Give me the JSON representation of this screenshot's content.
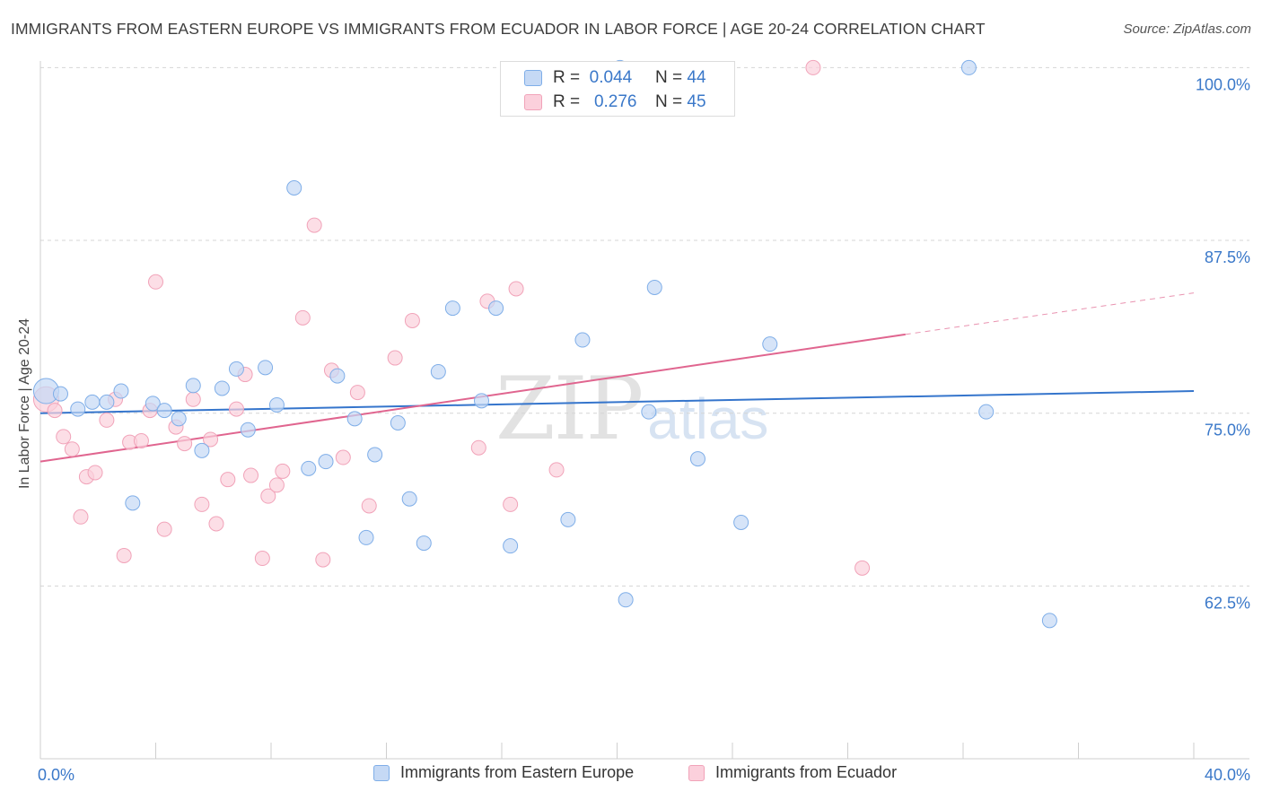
{
  "title": "IMMIGRANTS FROM EASTERN EUROPE VS IMMIGRANTS FROM ECUADOR IN LABOR FORCE | AGE 20-24 CORRELATION CHART",
  "source": "Source: ZipAtlas.com",
  "watermark": {
    "zip": "ZIP",
    "atlas": "atlas"
  },
  "stats": [
    {
      "r_label": "R =",
      "r_value": "0.044",
      "n_label": "N =",
      "n_value": "44",
      "swatch_fill": "#c5d9f5",
      "swatch_stroke": "#7faee8"
    },
    {
      "r_label": "R =",
      "r_value": "0.276",
      "n_label": "N =",
      "n_value": "45",
      "swatch_fill": "#fbd0dc",
      "swatch_stroke": "#f1a3b9"
    }
  ],
  "legend": {
    "items": [
      {
        "label": "Immigrants from Eastern Europe",
        "fill": "#c5d9f5",
        "stroke": "#7faee8"
      },
      {
        "label": "Immigrants from Ecuador",
        "fill": "#fbd0dc",
        "stroke": "#f1a3b9"
      }
    ]
  },
  "chart_data": {
    "type": "scatter",
    "title": "IMMIGRANTS FROM EASTERN EUROPE VS IMMIGRANTS FROM ECUADOR IN LABOR FORCE | AGE 20-24 CORRELATION CHART",
    "xlabel": "",
    "ylabel": "In Labor Force | Age 20-24",
    "xlim": [
      0,
      40
    ],
    "ylim": [
      50,
      101
    ],
    "x_tick_labels": [
      "0.0%",
      "40.0%"
    ],
    "y_ticks": [
      62.5,
      75.0,
      87.5,
      100.0
    ],
    "y_tick_labels": [
      "62.5%",
      "75.0%",
      "87.5%",
      "100.0%"
    ],
    "grid": true,
    "legend_position": "bottom",
    "colors": {
      "blue_fill": "#c5d9f5",
      "blue_stroke": "#7faee8",
      "blue_line": "#3575cc",
      "pink_fill": "#fbd0dc",
      "pink_stroke": "#f1a3b9",
      "pink_line": "#e0658f",
      "tick_label": "#3a78c9"
    },
    "series": [
      {
        "name": "Immigrants from Eastern Europe",
        "trend": {
          "x0": 0.0,
          "y0": 75.0,
          "x1": 40.0,
          "y1": 76.6
        },
        "points": [
          [
            0.2,
            76.6
          ],
          [
            0.7,
            76.4
          ],
          [
            1.3,
            75.3
          ],
          [
            1.8,
            75.8
          ],
          [
            2.3,
            75.8
          ],
          [
            2.8,
            76.6
          ],
          [
            3.2,
            68.5
          ],
          [
            3.9,
            75.7
          ],
          [
            4.3,
            75.2
          ],
          [
            4.8,
            74.6
          ],
          [
            5.3,
            77.0
          ],
          [
            5.6,
            72.3
          ],
          [
            6.3,
            76.8
          ],
          [
            6.8,
            78.2
          ],
          [
            7.2,
            73.8
          ],
          [
            7.8,
            78.3
          ],
          [
            8.2,
            75.6
          ],
          [
            8.8,
            91.3
          ],
          [
            9.3,
            71.0
          ],
          [
            9.9,
            71.5
          ],
          [
            10.3,
            77.7
          ],
          [
            10.9,
            74.6
          ],
          [
            11.3,
            66.0
          ],
          [
            11.6,
            72.0
          ],
          [
            12.4,
            74.3
          ],
          [
            12.8,
            68.8
          ],
          [
            13.3,
            65.6
          ],
          [
            13.8,
            78.0
          ],
          [
            14.3,
            82.6
          ],
          [
            15.3,
            75.9
          ],
          [
            15.8,
            82.6
          ],
          [
            16.3,
            65.4
          ],
          [
            18.3,
            67.3
          ],
          [
            18.8,
            80.3
          ],
          [
            20.1,
            100.0
          ],
          [
            20.3,
            61.5
          ],
          [
            21.1,
            75.1
          ],
          [
            21.3,
            84.1
          ],
          [
            22.8,
            71.7
          ],
          [
            24.3,
            67.1
          ],
          [
            25.3,
            80.0
          ],
          [
            32.2,
            100.0
          ],
          [
            32.8,
            75.1
          ],
          [
            35.0,
            60.0
          ]
        ]
      },
      {
        "name": "Immigrants from Ecuador",
        "trend": {
          "x0": 0.0,
          "y0": 71.5,
          "x1": 30.0,
          "y1": 80.7,
          "dashed_x1": 40.0,
          "dashed_y1": 83.7
        },
        "points": [
          [
            0.2,
            76.0
          ],
          [
            0.5,
            75.2
          ],
          [
            0.8,
            73.3
          ],
          [
            1.1,
            72.4
          ],
          [
            1.4,
            67.5
          ],
          [
            1.6,
            70.4
          ],
          [
            1.9,
            70.7
          ],
          [
            2.3,
            74.5
          ],
          [
            2.6,
            76.0
          ],
          [
            2.9,
            64.7
          ],
          [
            3.1,
            72.9
          ],
          [
            3.5,
            73.0
          ],
          [
            3.8,
            75.2
          ],
          [
            4.0,
            84.5
          ],
          [
            4.3,
            66.6
          ],
          [
            4.7,
            74.0
          ],
          [
            5.0,
            72.8
          ],
          [
            5.3,
            76.0
          ],
          [
            5.6,
            68.4
          ],
          [
            5.9,
            73.1
          ],
          [
            6.1,
            67.0
          ],
          [
            6.5,
            70.2
          ],
          [
            6.8,
            75.3
          ],
          [
            7.1,
            77.8
          ],
          [
            7.3,
            70.5
          ],
          [
            7.7,
            64.5
          ],
          [
            7.9,
            69.0
          ],
          [
            8.2,
            69.8
          ],
          [
            8.4,
            70.8
          ],
          [
            9.1,
            81.9
          ],
          [
            9.5,
            88.6
          ],
          [
            9.8,
            64.4
          ],
          [
            10.1,
            78.1
          ],
          [
            10.5,
            71.8
          ],
          [
            11.0,
            76.5
          ],
          [
            11.4,
            68.3
          ],
          [
            12.3,
            79.0
          ],
          [
            12.9,
            81.7
          ],
          [
            15.2,
            72.5
          ],
          [
            15.5,
            83.1
          ],
          [
            16.3,
            68.4
          ],
          [
            16.5,
            84.0
          ],
          [
            17.9,
            70.9
          ],
          [
            26.8,
            100.0
          ],
          [
            28.5,
            63.8
          ]
        ]
      }
    ]
  }
}
